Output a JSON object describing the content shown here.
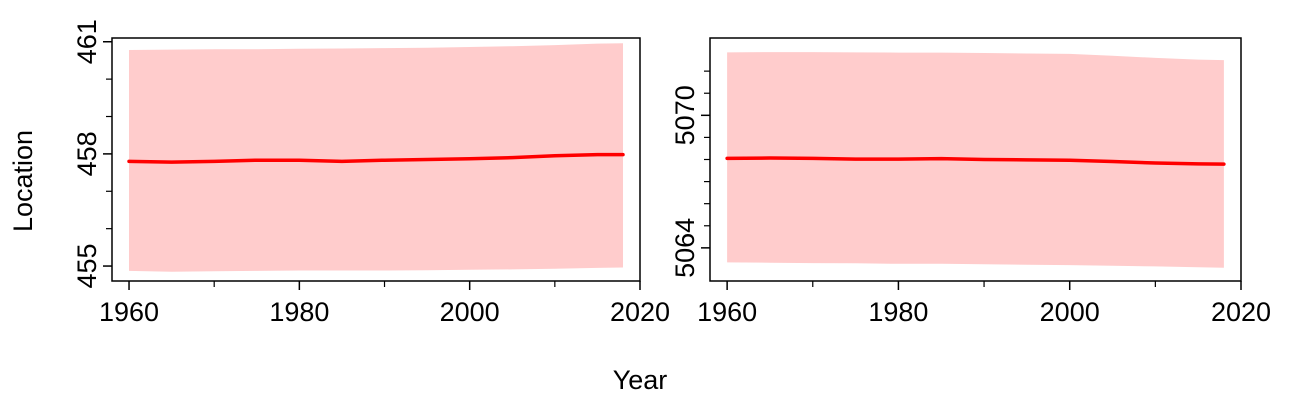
{
  "figure": {
    "xlabel": "Year",
    "ylabel": "Location"
  },
  "chart_data": [
    {
      "type": "line",
      "xlim": [
        1958,
        2020
      ],
      "ylim": [
        454.6,
        461.1
      ],
      "x_ticks": [
        1960,
        1980,
        2000,
        2020
      ],
      "x_minor_ticks": [
        1970,
        1990,
        2010
      ],
      "y_ticks": [
        455,
        458,
        461
      ],
      "y_minor_ticks": [
        456,
        457,
        459,
        460
      ],
      "color": "#ff0000",
      "band_color": "#ffcccc",
      "series": [
        {
          "x": [
            1960,
            1965,
            1970,
            1975,
            1980,
            1985,
            1990,
            1995,
            2000,
            2005,
            2010,
            2015,
            2018
          ],
          "values": [
            457.8,
            457.78,
            457.8,
            457.83,
            457.83,
            457.8,
            457.83,
            457.85,
            457.87,
            457.9,
            457.95,
            457.98,
            457.98
          ],
          "lower": [
            454.87,
            454.85,
            454.86,
            454.87,
            454.88,
            454.88,
            454.88,
            454.89,
            454.9,
            454.91,
            454.93,
            454.95,
            454.96
          ],
          "upper": [
            460.78,
            460.79,
            460.8,
            460.8,
            460.81,
            460.82,
            460.83,
            460.84,
            460.86,
            460.88,
            460.91,
            460.95,
            460.96
          ]
        }
      ]
    },
    {
      "type": "line",
      "xlim": [
        1958,
        2020
      ],
      "ylim": [
        5062.5,
        5073.5
      ],
      "x_ticks": [
        1960,
        1980,
        2000,
        2020
      ],
      "x_minor_ticks": [
        1970,
        1990,
        2010
      ],
      "y_ticks": [
        5064,
        5070
      ],
      "y_minor_ticks": [
        5065,
        5066,
        5067,
        5068,
        5069,
        5071,
        5072
      ],
      "color": "#ff0000",
      "band_color": "#ffcccc",
      "series": [
        {
          "x": [
            1960,
            1965,
            1970,
            1975,
            1980,
            1985,
            1990,
            1995,
            2000,
            2005,
            2010,
            2015,
            2018
          ],
          "values": [
            5068.05,
            5068.07,
            5068.05,
            5068.02,
            5068.02,
            5068.04,
            5068.0,
            5067.98,
            5067.97,
            5067.91,
            5067.84,
            5067.8,
            5067.79
          ],
          "lower": [
            5063.34,
            5063.33,
            5063.31,
            5063.3,
            5063.28,
            5063.28,
            5063.26,
            5063.24,
            5063.22,
            5063.19,
            5063.16,
            5063.12,
            5063.1
          ],
          "upper": [
            5072.85,
            5072.86,
            5072.86,
            5072.85,
            5072.84,
            5072.84,
            5072.82,
            5072.8,
            5072.78,
            5072.7,
            5072.6,
            5072.52,
            5072.5
          ]
        }
      ]
    }
  ]
}
